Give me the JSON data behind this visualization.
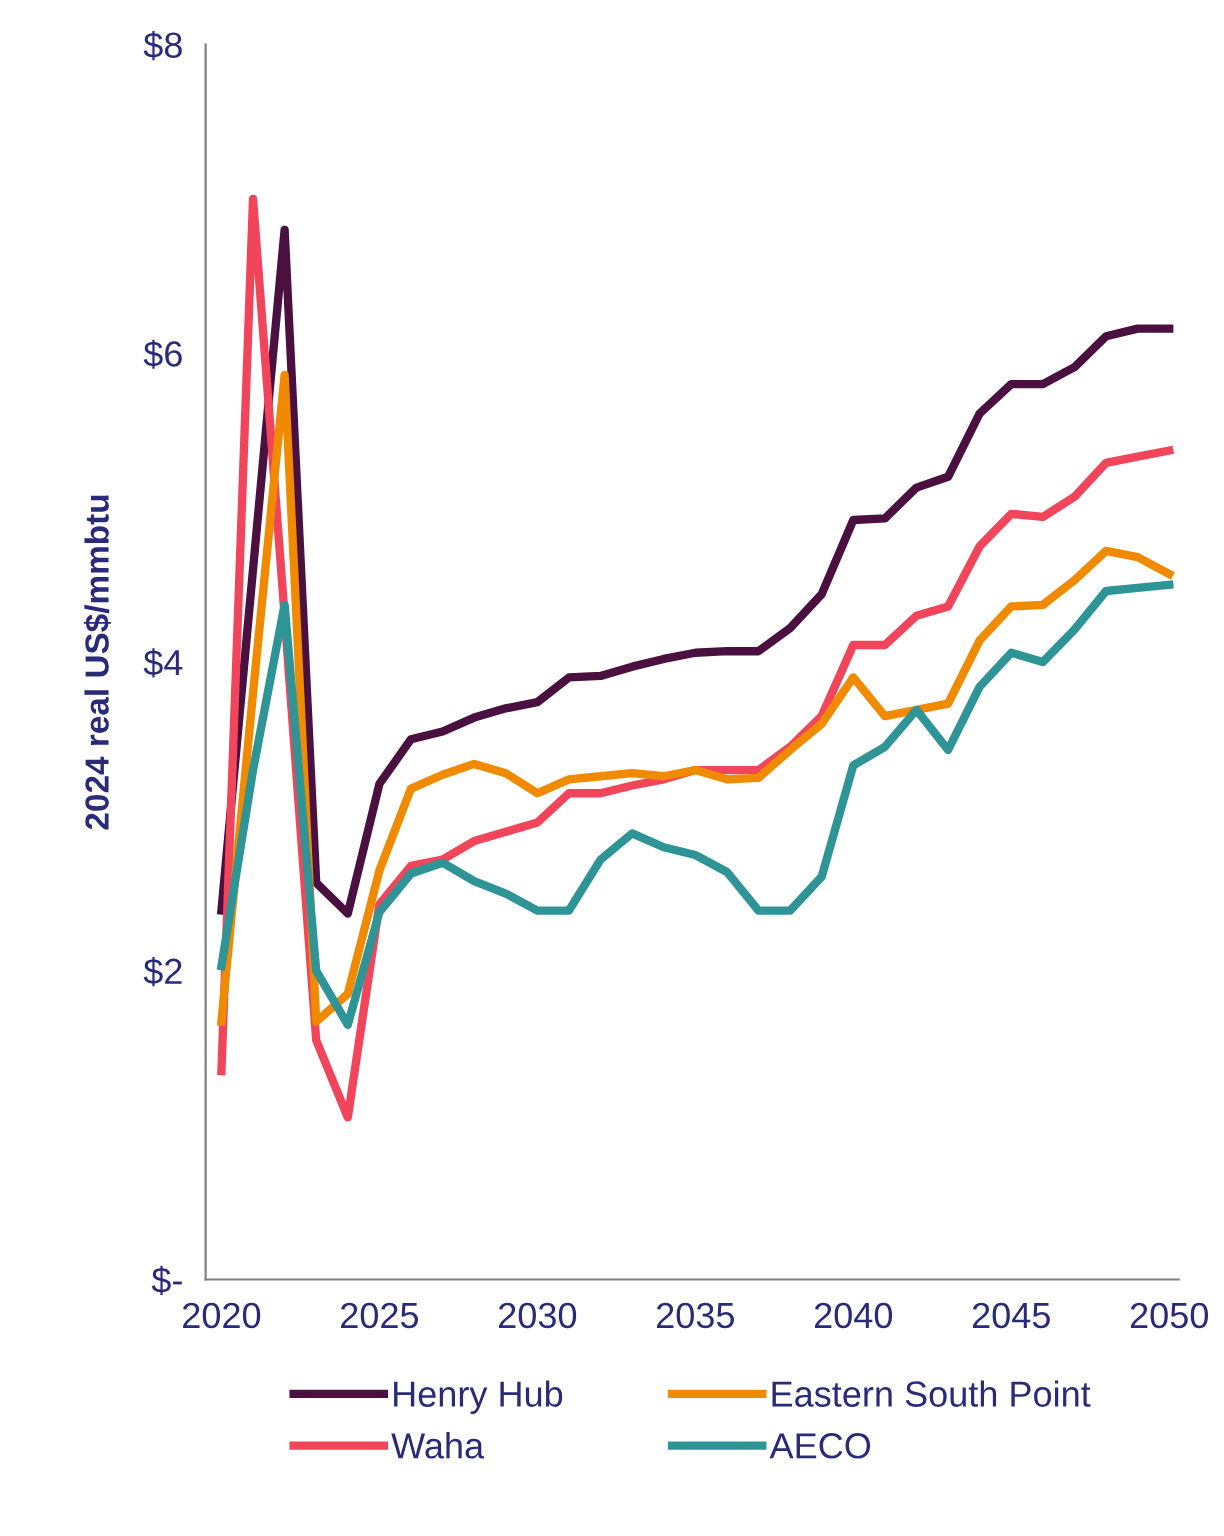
{
  "chart_data": {
    "type": "line",
    "ylabel": "2024 real US$/mmbtu",
    "x": [
      2020,
      2021,
      2022,
      2023,
      2024,
      2025,
      2026,
      2027,
      2028,
      2029,
      2030,
      2031,
      2032,
      2033,
      2034,
      2035,
      2036,
      2037,
      2038,
      2039,
      2040,
      2041,
      2042,
      2043,
      2044,
      2045,
      2046,
      2047,
      2048,
      2049,
      2050
    ],
    "series": [
      {
        "name": "Henry Hub",
        "color": "#4a1040",
        "values": [
          2.39,
          4.6,
          6.8,
          2.57,
          2.37,
          3.21,
          3.5,
          3.55,
          3.64,
          3.7,
          3.74,
          3.9,
          3.91,
          3.97,
          4.02,
          4.06,
          4.07,
          4.07,
          4.22,
          4.44,
          4.92,
          4.93,
          5.13,
          5.2,
          5.61,
          5.8,
          5.8,
          5.91,
          6.11,
          6.16,
          6.16
        ]
      },
      {
        "name": "Waha",
        "color": "#f0455a",
        "values": [
          1.35,
          7.0,
          4.3,
          1.55,
          1.05,
          2.43,
          2.68,
          2.72,
          2.84,
          2.9,
          2.96,
          3.15,
          3.15,
          3.2,
          3.24,
          3.3,
          3.3,
          3.3,
          3.45,
          3.65,
          4.11,
          4.11,
          4.3,
          4.36,
          4.75,
          4.96,
          4.94,
          5.07,
          5.29,
          5.33,
          5.37
        ]
      },
      {
        "name": "Eastern South Point",
        "color": "#f08a00",
        "values": [
          1.67,
          3.8,
          5.86,
          1.67,
          1.85,
          2.65,
          3.18,
          3.27,
          3.34,
          3.28,
          3.15,
          3.24,
          3.26,
          3.28,
          3.26,
          3.3,
          3.24,
          3.25,
          3.43,
          3.6,
          3.9,
          3.65,
          3.69,
          3.73,
          4.14,
          4.36,
          4.37,
          4.53,
          4.72,
          4.68,
          4.57
        ]
      },
      {
        "name": "AECO",
        "color": "#2e9496",
        "values": [
          2.03,
          3.3,
          4.37,
          2.0,
          1.65,
          2.38,
          2.63,
          2.7,
          2.58,
          2.5,
          2.39,
          2.39,
          2.72,
          2.89,
          2.8,
          2.75,
          2.64,
          2.39,
          2.39,
          2.61,
          3.33,
          3.45,
          3.69,
          3.43,
          3.84,
          4.06,
          4.0,
          4.21,
          4.46,
          4.48,
          4.5
        ]
      }
    ],
    "xlim": [
      2019.5,
      2050.3
    ],
    "xticks": [
      2020,
      2025,
      2030,
      2035,
      2040,
      2045,
      2050
    ],
    "ylim": [
      0,
      8
    ],
    "yticks": [
      {
        "value": 0,
        "label": "$-"
      },
      {
        "value": 2,
        "label": "$2"
      },
      {
        "value": 4,
        "label": "$4"
      },
      {
        "value": 6,
        "label": "$6"
      },
      {
        "value": 8,
        "label": "$8"
      }
    ],
    "grid": false,
    "legend": "bottom",
    "marker": "none",
    "line_style": "solid"
  }
}
